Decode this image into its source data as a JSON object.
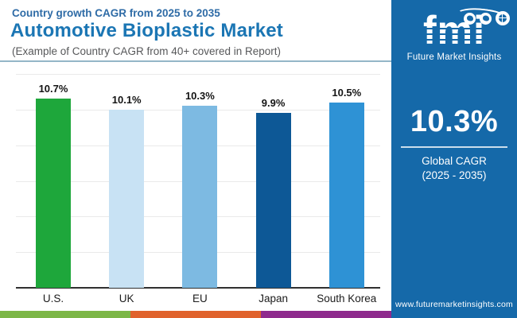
{
  "header": {
    "kicker": "Country growth CAGR from 2025 to 2035",
    "title": "Automotive Bioplastic Market",
    "subtitle": "(Example of Country CAGR from 40+ covered in Report)"
  },
  "chart_data": {
    "type": "bar",
    "title": "Country growth CAGR from 2025 to 2035",
    "categories": [
      "U.S.",
      "UK",
      "EU",
      "Japan",
      "South Korea"
    ],
    "values": [
      10.7,
      10.1,
      10.3,
      9.9,
      10.5
    ],
    "value_labels": [
      "10.7%",
      "10.1%",
      "10.3%",
      "9.9%",
      "10.5%"
    ],
    "bar_colors": [
      "#1ea73b",
      "#c8e2f4",
      "#7dbae2",
      "#0d5896",
      "#2e92d5"
    ],
    "xlabel": "",
    "ylabel": "",
    "ylim": [
      0,
      12
    ],
    "grid": true,
    "legend": false
  },
  "panel": {
    "bg_color": "#1569a9",
    "logo_text": "fmi",
    "logo_caption": "Future Market Insights",
    "logo_icons": [
      "usa-map-icon",
      "plane-icon",
      "globe-icon"
    ],
    "stat_value": "10.3%",
    "stat_label_line1": "Global CAGR",
    "stat_label_line2": "(2025 - 2035)",
    "website": "www.futuremarketinsights.com"
  },
  "footer_strip": {
    "colors": [
      "#7cb747",
      "#e0622c",
      "#8e2a8d"
    ]
  }
}
